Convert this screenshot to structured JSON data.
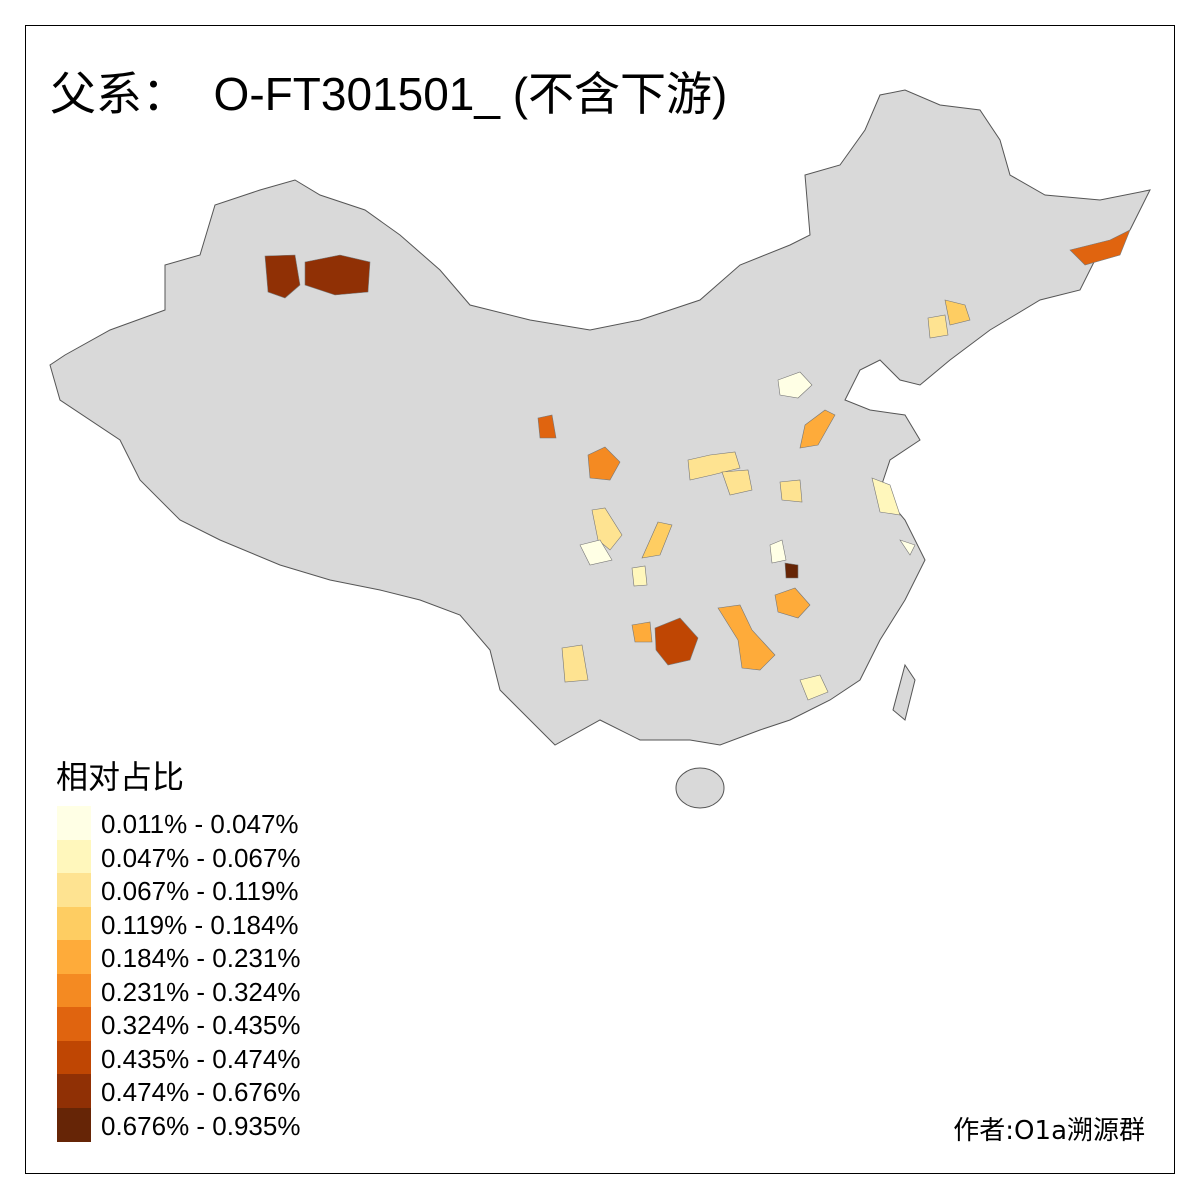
{
  "title": "父系：  O-FT301501_ (不含下游)",
  "legend": {
    "title": "相对占比",
    "items": [
      {
        "label": "0.011% - 0.047%",
        "color": "#FFFFE5"
      },
      {
        "label": "0.047% - 0.067%",
        "color": "#FFF7BC"
      },
      {
        "label": "0.067% - 0.119%",
        "color": "#FEE391"
      },
      {
        "label": "0.119% - 0.184%",
        "color": "#FECD62"
      },
      {
        "label": "0.184% - 0.231%",
        "color": "#FEAB3A"
      },
      {
        "label": "0.231% - 0.324%",
        "color": "#F48A22"
      },
      {
        "label": "0.324% - 0.435%",
        "color": "#E0640F"
      },
      {
        "label": "0.435% - 0.474%",
        "color": "#BF4603"
      },
      {
        "label": "0.474% - 0.676%",
        "color": "#903005"
      },
      {
        "label": "0.676% - 0.935%",
        "color": "#662506"
      }
    ]
  },
  "base_color": "#D9D9D9",
  "author": "作者:O1a溯源群"
}
